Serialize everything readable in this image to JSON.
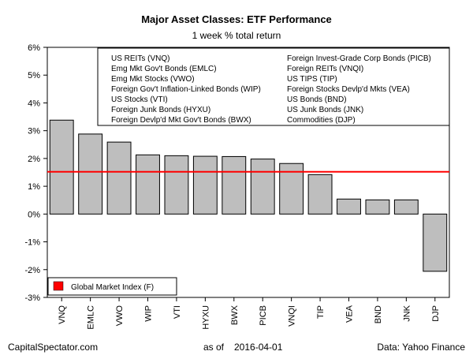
{
  "chart_data": {
    "type": "bar",
    "title": "Major Asset Classes: ETF Performance",
    "subtitle": "1 week % total return",
    "categories": [
      "VNQ",
      "EMLC",
      "VWO",
      "WIP",
      "VTI",
      "HYXU",
      "BWX",
      "PICB",
      "VNQI",
      "TIP",
      "VEA",
      "BND",
      "JNK",
      "DJP"
    ],
    "values": [
      3.38,
      2.88,
      2.59,
      2.13,
      2.1,
      2.08,
      2.07,
      1.98,
      1.82,
      1.42,
      0.54,
      0.51,
      0.51,
      -2.06
    ],
    "ylim": [
      -3,
      6
    ],
    "yticks": [
      "-3%",
      "-2%",
      "-1%",
      "0%",
      "1%",
      "2%",
      "3%",
      "4%",
      "5%",
      "6%"
    ],
    "grid": false,
    "bar_color": "#bebebe",
    "reference_line": {
      "label": "Global Market Index (F)",
      "value": 1.52,
      "color": "#ff0000"
    },
    "fund_legend": {
      "left": [
        "US REITs (VNQ)",
        "Emg Mkt Gov't Bonds (EMLC)",
        "Emg Mkt Stocks (VWO)",
        "Foreign Gov't Inflation-Linked Bonds (WIP)",
        "US Stocks (VTI)",
        "Foreign Junk Bonds (HYXU)",
        "Foreign Devlp'd Mkt Gov't Bonds (BWX)"
      ],
      "right": [
        "Foreign Invest-Grade Corp Bonds (PICB)",
        "Foreign REITs (VNQI)",
        "US TIPS (TIP)",
        "Foreign Stocks Devlp'd Mkts (VEA)",
        "US Bonds (BND)",
        "US Junk Bonds (JNK)",
        "Commodities (DJP)"
      ]
    }
  },
  "footer": {
    "left": "CapitalSpectator.com",
    "date_prefix": "as of",
    "date": "2016-04-01",
    "right": "Data: Yahoo Finance"
  }
}
